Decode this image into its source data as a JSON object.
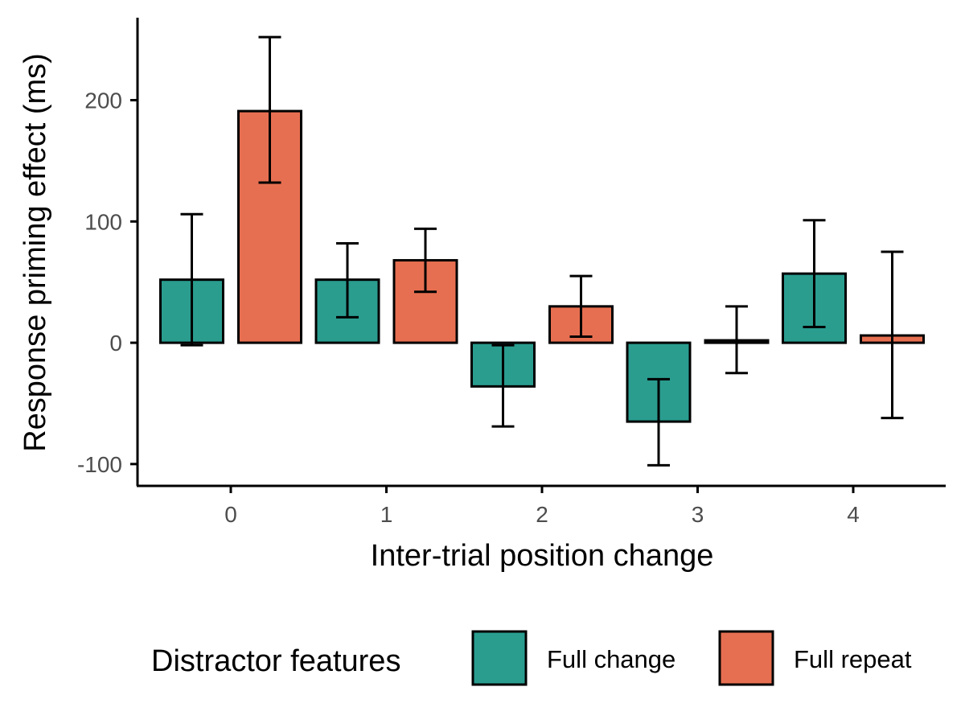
{
  "chart_data": {
    "type": "bar",
    "title": "",
    "xlabel": "Inter-trial position change",
    "ylabel": "Response priming effect (ms)",
    "categories": [
      "0",
      "1",
      "2",
      "3",
      "4"
    ],
    "ylim": [
      -118,
      268
    ],
    "yticks": [
      -100,
      0,
      100,
      200
    ],
    "grid": false,
    "legend": {
      "title": "Distractor features",
      "position": "bottom"
    },
    "series": [
      {
        "name": "Full change",
        "color": "#2a9d8f",
        "values": [
          52,
          52,
          -36,
          -65,
          57
        ],
        "err_low": [
          -2,
          21,
          -69,
          -101,
          13
        ],
        "err_high": [
          106,
          82,
          -2,
          -30,
          101
        ]
      },
      {
        "name": "Full repeat",
        "color": "#e76f51",
        "values": [
          191,
          68,
          30,
          2,
          6
        ],
        "err_low": [
          132,
          42,
          5,
          -25,
          -62
        ],
        "err_high": [
          252,
          94,
          55,
          30,
          75
        ]
      }
    ]
  }
}
